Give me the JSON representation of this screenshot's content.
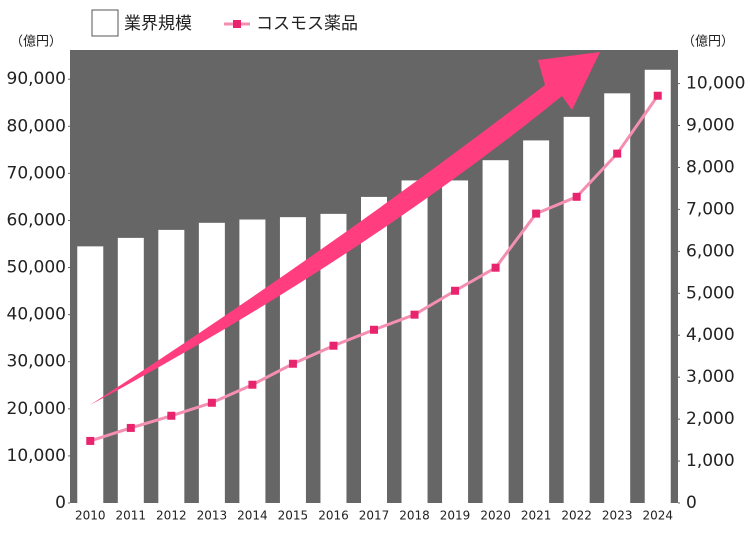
{
  "chart_data": {
    "type": "bar-line",
    "categories": [
      "2010",
      "2011",
      "2012",
      "2013",
      "2014",
      "2015",
      "2016",
      "2017",
      "2018",
      "2019",
      "2020",
      "2021",
      "2022",
      "2023",
      "2024"
    ],
    "series": [
      {
        "name": "業界規模",
        "color": "#ffffff",
        "type": "bar",
        "values": [
          54500,
          56300,
          58000,
          59500,
          60200,
          60700,
          61400,
          65000,
          68500,
          68500,
          72800,
          77000,
          82000,
          87000,
          92000
        ]
      },
      {
        "name": "コスモス薬品",
        "color": "#f48fb1",
        "marker_color": "#e8246e",
        "type": "line",
        "axis": "y2",
        "values": [
          1480,
          1790,
          2080,
          2390,
          2820,
          3320,
          3750,
          4130,
          4490,
          5060,
          5610,
          6900,
          7300,
          8330,
          9710
        ]
      }
    ],
    "y_unit": "（億円）",
    "y2_unit": "（億円）",
    "ylim": [
      0,
      96200
    ],
    "yticks": [
      0,
      {
        "value": 10000,
        "label": "10,000"
      },
      {
        "value": 20000,
        "label": "20,000"
      },
      {
        "value": 30000,
        "label": "30,000"
      },
      {
        "value": 40000,
        "label": "40,000"
      },
      {
        "value": 50000,
        "label": "50,000"
      },
      {
        "value": 60000,
        "label": "60,000"
      },
      {
        "value": 70000,
        "label": "70,000"
      },
      {
        "value": 80000,
        "label": "80,000"
      },
      {
        "value": 90000,
        "label": "90,000"
      }
    ],
    "y2lim": [
      0,
      10800
    ],
    "y2ticks": [
      0,
      {
        "value": 1000,
        "label": "1,000"
      },
      {
        "value": 2000,
        "label": "2,000"
      },
      {
        "value": 3000,
        "label": "3,000"
      },
      {
        "value": 4000,
        "label": "4,000"
      },
      {
        "value": 5000,
        "label": "5,000"
      },
      {
        "value": 6000,
        "label": "6,000"
      },
      {
        "value": 7000,
        "label": "7,000"
      },
      {
        "value": 8000,
        "label": "8,000"
      },
      {
        "value": 9000,
        "label": "9,000"
      },
      {
        "value": 10000,
        "label": "10,000"
      }
    ],
    "plot_background": "#666666",
    "grid": false
  }
}
